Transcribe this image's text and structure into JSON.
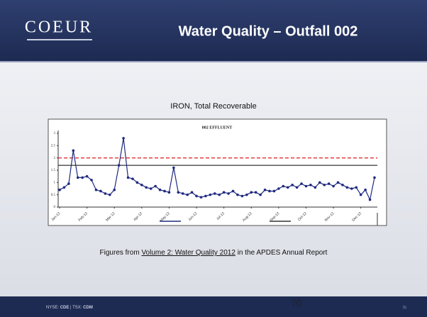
{
  "header": {
    "logo": "COEUR",
    "title": "Water Quality – Outfall 002"
  },
  "subtitle": "IRON, Total Recoverable",
  "caption": {
    "before": "Figures from ",
    "link": "Volume 2: Water Quality 2012",
    "after": " in the APDES Annual Report"
  },
  "footer": {
    "exchange1": "NYSE: ",
    "ticker1": "CDE",
    "exchange2": " | TSX: ",
    "ticker2": "CDM",
    "page": "70",
    "page_small": "70"
  },
  "chart_data": {
    "type": "line",
    "title": "002 EFFLUENT",
    "categories": [
      "Jan-12",
      null,
      null,
      null,
      null,
      null,
      "Feb-12",
      null,
      null,
      null,
      null,
      null,
      "Mar-12",
      null,
      null,
      null,
      null,
      null,
      "Apr-12",
      null,
      null,
      null,
      null,
      null,
      "May-12",
      null,
      null,
      null,
      null,
      null,
      "Jun-12",
      null,
      null,
      null,
      null,
      null,
      "Jul-12",
      null,
      null,
      null,
      null,
      null,
      "Aug-12",
      null,
      null,
      null,
      null,
      null,
      "Sep-12",
      null,
      null,
      null,
      null,
      null,
      "Oct-12",
      null,
      null,
      null,
      null,
      null,
      "Nov-12",
      null,
      null,
      null,
      null,
      null,
      "Dec-12",
      null,
      null,
      null
    ],
    "series": [
      {
        "color": "#1f2a80",
        "values": [
          0.7,
          0.8,
          0.95,
          2.3,
          1.2,
          1.2,
          1.25,
          1.1,
          0.7,
          0.65,
          0.55,
          0.5,
          0.7,
          1.7,
          2.8,
          1.2,
          1.15,
          1.0,
          0.9,
          0.8,
          0.75,
          0.85,
          0.7,
          0.65,
          0.6,
          1.6,
          0.6,
          0.55,
          0.5,
          0.6,
          0.45,
          0.4,
          0.45,
          0.5,
          0.55,
          0.5,
          0.6,
          0.55,
          0.65,
          0.5,
          0.45,
          0.5,
          0.6,
          0.6,
          0.5,
          0.7,
          0.65,
          0.65,
          0.75,
          0.85,
          0.8,
          0.9,
          0.8,
          0.95,
          0.85,
          0.9,
          0.8,
          1.0,
          0.9,
          0.95,
          0.85,
          1.0,
          0.9,
          0.8,
          0.75,
          0.8,
          0.5,
          0.7,
          0.3,
          1.2
        ]
      }
    ],
    "reference_lines": [
      {
        "value": 2.0,
        "color": "#e03030",
        "dashed": true
      },
      {
        "value": 1.7,
        "color": "#000000",
        "dashed": false
      }
    ],
    "ylim": [
      0,
      3
    ],
    "yticks": [
      0,
      0.5,
      1,
      1.5,
      2,
      2.5,
      3
    ]
  }
}
